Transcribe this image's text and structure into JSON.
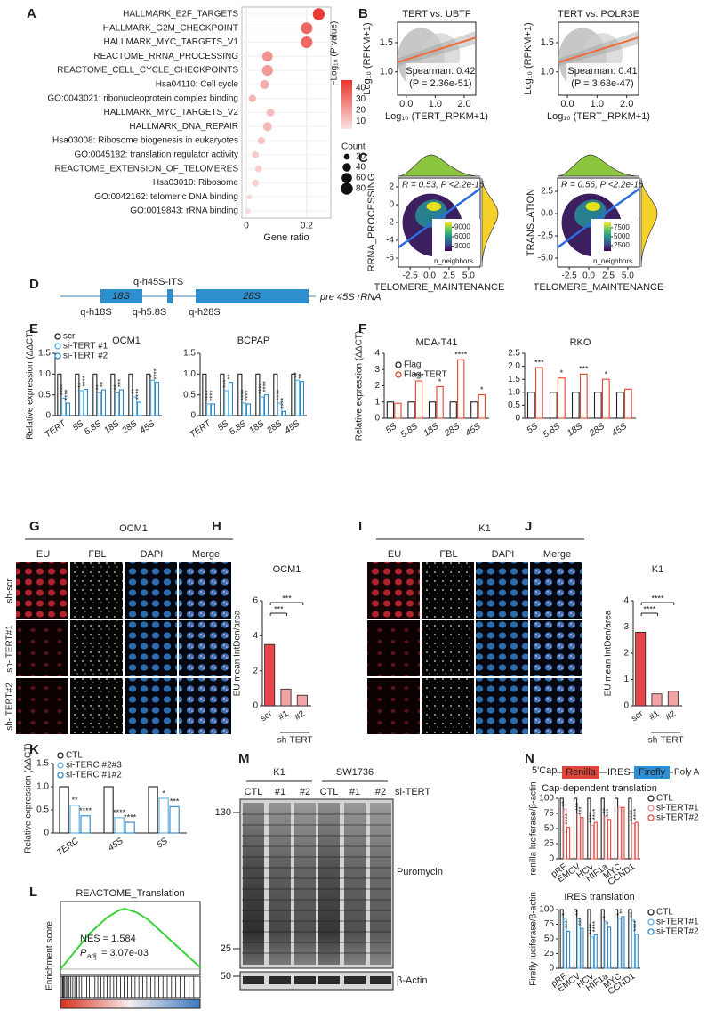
{
  "panel_letters": [
    "A",
    "B",
    "C",
    "D",
    "E",
    "F",
    "G",
    "H",
    "I",
    "J",
    "K",
    "L",
    "M",
    "N"
  ],
  "diagram_d": {
    "probe_top": "q-h45S-ITS",
    "box1": "18S",
    "box2": "28S",
    "label": "pre 45S rRNA",
    "probes": [
      "q-h18S",
      "q-h5.8S",
      "q-h28S"
    ]
  },
  "microscopy_g": {
    "title": "OCM1",
    "channels": [
      "EU",
      "FBL",
      "DAPI",
      "Merge"
    ],
    "rows": [
      "sh-scr",
      "sh- TERT#1",
      "sh- TERT#2"
    ]
  },
  "microscopy_i": {
    "title": "K1",
    "channels": [
      "EU",
      "FBL",
      "DAPI",
      "Merge"
    ]
  },
  "blot_m": {
    "groups": [
      "K1",
      "SW1736"
    ],
    "lanes": [
      "CTL",
      "#1",
      "#2",
      "CTL",
      "#1",
      "#2"
    ],
    "condition": "si-TERT",
    "markers": [
      "130",
      "25",
      "50"
    ],
    "bands": [
      "Puromycin",
      "β-Actin"
    ]
  },
  "construct_n": {
    "cap": "5'Cap",
    "renilla": "Renilla",
    "ires": "IRES",
    "firefly": "Firefly",
    "polya": "Poly A"
  },
  "chart_data": [
    {
      "type": "dot",
      "categories": [
        "HALLMARK_E2F_TARGETS",
        "HALLMARK_G2M_CHECKPOINT",
        "HALLMARK_MYC_TARGETS_V1",
        "REACTOME_RRNA_PROCESSING",
        "REACTOME_CELL_CYCLE_CHECKPOINTS",
        "Hsa04110: Cell cycle",
        "GO:0043021: ribonucleoprotein complex binding",
        "HALLMARK_MYC_TARGETS_V2",
        "HALLMARK_DNA_REPAIR",
        "Hsa03008: Ribosome biogenesis in eukaryotes",
        "GO:0045182: translation regulator activity",
        "REACTOME_EXTENSION_OF_TELOMERES",
        "Hsa03010: Ribosome",
        "GO:0042162: telomeric DNA binding",
        "GO:0019843: rRNA binding"
      ],
      "values": [
        0.24,
        0.2,
        0.2,
        0.07,
        0.07,
        0.06,
        0.02,
        0.08,
        0.07,
        0.05,
        0.03,
        0.04,
        0.03,
        0.01,
        0.005
      ],
      "color_values": [
        45,
        33,
        33,
        22,
        20,
        14,
        12,
        10,
        11,
        8,
        7,
        6,
        5,
        3,
        3
      ],
      "sizes": [
        80,
        75,
        75,
        60,
        65,
        45,
        30,
        35,
        45,
        30,
        25,
        25,
        25,
        15,
        15
      ],
      "x_label": "Gene ratio",
      "xlim": [
        -0.015,
        0.28
      ],
      "xticks": [
        0,
        0.2
      ],
      "colorbar_title": "−Log₁₀ (P value)",
      "clim": [
        3,
        47
      ],
      "colorbar_ticks": [
        10,
        20,
        30,
        40
      ],
      "size_title": "Count",
      "size_ticks": [
        20,
        40,
        60,
        80
      ]
    },
    {
      "type": "scatter",
      "title": "TERT vs. UBTF",
      "x_label": "Log₁₀ (TERT_RPKM+1)",
      "y_label": "Log₁₀ (RPKM+1)",
      "annotations": [
        "Spearman: 0.42",
        "(P = 2.36e-51)"
      ],
      "xlim": [
        -0.3,
        2.4
      ],
      "xticks": [
        {
          "value": 0,
          "label": "0.0"
        },
        {
          "value": 1,
          "label": "1.0"
        },
        {
          "value": 2,
          "label": "2.0"
        }
      ],
      "ylim": [
        0.6,
        1.85
      ],
      "yticks": [
        {
          "value": 1,
          "label": "1.0"
        },
        1.5
      ]
    },
    {
      "type": "scatter",
      "title": "TERT vs. POLR3E",
      "x_label": "Log₁₀ (TERT_RPKM+1)",
      "y_label": "Log₁₀ (RPKM+1)",
      "annotations": [
        "Spearman: 0.41",
        "(P = 3.63e-47)"
      ],
      "xlim": [
        -0.3,
        2.4
      ],
      "xticks": [
        {
          "value": 0,
          "label": "0.0"
        },
        {
          "value": 1,
          "label": "1.0"
        },
        {
          "value": 2,
          "label": "2.0"
        }
      ],
      "ylim": [
        0.6,
        1.85
      ],
      "yticks": [
        {
          "value": 1,
          "label": "1.0"
        },
        1.5
      ]
    },
    {
      "type": "density",
      "annotation": "R = 0.53, P <2.2e-16",
      "x_label": "TELOMERE_MAINTENANCE",
      "y_label": "RRNA_PROCESSING",
      "xlim": [
        -4,
        6.5
      ],
      "xticks": [
        -2.5,
        {
          "value": 0,
          "label": "0.0"
        },
        2.5,
        {
          "value": 5,
          "label": "5.0"
        }
      ],
      "ylim": [
        -7,
        3
      ],
      "yticks": [
        -6,
        -4,
        -2,
        0,
        2
      ],
      "colorbar_title": "n_neighbors",
      "clim": [
        1500,
        10500
      ],
      "colorbar_ticks": [
        3000,
        6000,
        9000
      ]
    },
    {
      "type": "density",
      "annotation": "R = 0.56, P <2.2e-16",
      "x_label": "TELOMERE_MAINTENANCE",
      "y_label": "TRANSLATION",
      "xlim": [
        -4,
        6.5
      ],
      "xticks": [
        -2.5,
        {
          "value": 0,
          "label": "0.0"
        },
        2.5,
        {
          "value": 5,
          "label": "5.0"
        }
      ],
      "ylim": [
        -6,
        4
      ],
      "yticks": [
        {
          "value": -5,
          "label": "-5.0"
        },
        -2.5,
        {
          "value": 0,
          "label": "0.0"
        },
        2.5
      ],
      "colorbar_title": "n_neighbors",
      "clim": [
        1000,
        9000
      ],
      "colorbar_ticks": [
        2500,
        5000,
        7500
      ]
    },
    {
      "type": "bar",
      "style": "outline",
      "title": "OCM1",
      "y_label": "Relative expression (ΔΔCT)",
      "categories": [
        "TERT",
        "5S",
        "5.8S",
        "18S",
        "28S",
        "45S"
      ],
      "series": [
        {
          "name": "scr",
          "color": "#222222",
          "values": [
            1,
            1,
            1,
            1,
            1,
            1
          ]
        },
        {
          "name": "si-TERT #1",
          "color": "#5aaee0",
          "values": [
            0.42,
            0.6,
            0.55,
            0.55,
            0.45,
            0.85
          ],
          "stars": [
            "****",
            "**",
            "**",
            "**",
            "**",
            "*"
          ]
        },
        {
          "name": "si-TERT #2",
          "color": "#2f86c6",
          "values": [
            0.3,
            0.63,
            0.62,
            0.62,
            0.32,
            0.8
          ],
          "stars": [
            "****",
            "****",
            "**",
            "***",
            "****",
            "****"
          ]
        }
      ],
      "ylim": [
        0,
        1.5
      ],
      "yticks": [
        0,
        0.5,
        {
          "value": 1,
          "label": "1.0"
        },
        1.5
      ]
    },
    {
      "type": "bar",
      "style": "outline",
      "title": "BCPAP",
      "categories": [
        "TERT",
        "5S",
        "5.8S",
        "18S",
        "28S",
        "45S"
      ],
      "series": [
        {
          "color": "#222222",
          "values": [
            1,
            1,
            1,
            1,
            1,
            1
          ]
        },
        {
          "color": "#5aaee0",
          "values": [
            0.28,
            0.6,
            0.3,
            0.45,
            0.3,
            0.85
          ],
          "stars": [
            "****",
            "***",
            "****",
            "****",
            "****",
            "**"
          ]
        },
        {
          "color": "#2f86c6",
          "values": [
            0.28,
            0.8,
            0.28,
            0.5,
            0.1,
            0.82
          ],
          "stars": [
            "****",
            "**",
            "****",
            "****",
            "****",
            "**"
          ]
        }
      ],
      "ylim": [
        0,
        1.5
      ],
      "yticks": [
        0,
        0.5,
        {
          "value": 1,
          "label": "1.0"
        },
        1.5
      ]
    },
    {
      "type": "bar",
      "style": "outline",
      "title": "MDA-T41",
      "y_label": "Relative expression (ΔΔCT)",
      "categories": [
        "5S",
        "5.8S",
        "18S",
        "28S",
        "45S"
      ],
      "series": [
        {
          "name": "Flag",
          "color": "#222222",
          "values": [
            1,
            1,
            1,
            1,
            1
          ]
        },
        {
          "name": "Flag-TERT",
          "color": "#e8452c",
          "values": [
            0.92,
            2.3,
            1.95,
            3.6,
            1.45
          ],
          "stars": [
            null,
            "***",
            "*",
            "****",
            "*"
          ]
        }
      ],
      "ylim": [
        0,
        4
      ],
      "yticks": [
        0,
        1,
        2,
        3,
        4
      ]
    },
    {
      "type": "bar",
      "style": "outline",
      "title": "RKO",
      "categories": [
        "5S",
        "5.8S",
        "18S",
        "28S",
        "45S"
      ],
      "series": [
        {
          "color": "#222222",
          "values": [
            1,
            1,
            1,
            1,
            1
          ]
        },
        {
          "color": "#e8452c",
          "values": [
            1.95,
            1.55,
            1.7,
            1.5,
            1.12
          ],
          "stars": [
            "***",
            "*",
            "***",
            "*",
            null
          ]
        }
      ],
      "ylim": [
        0,
        2.5
      ],
      "yticks": [
        0,
        0.5,
        {
          "value": 1,
          "label": "1.0"
        },
        1.5,
        {
          "value": 2,
          "label": "2.0"
        },
        2.5
      ]
    },
    {
      "type": "bar",
      "style": "filled",
      "title": "OCM1",
      "y_label": "EU mean IntDen/area",
      "categories": [
        "scr",
        "#1",
        "#2"
      ],
      "colors": [
        "#e8454a",
        "#f2a3a3",
        "#f2a3a3"
      ],
      "series": [
        {
          "values": [
            3.5,
            0.95,
            0.6
          ]
        }
      ],
      "ylim": [
        0,
        6
      ],
      "yticks": [
        0,
        2,
        4,
        6
      ],
      "brackets": [
        "***",
        "***"
      ],
      "group_label": "sh-TERT"
    },
    {
      "type": "bar",
      "style": "filled",
      "title": "K1",
      "y_label": "EU mean IntDen/area",
      "categories": [
        "scr",
        "#1",
        "#2"
      ],
      "colors": [
        "#e8454a",
        "#f2a3a3",
        "#f2a3a3"
      ],
      "series": [
        {
          "values": [
            2.8,
            0.45,
            0.55
          ]
        }
      ],
      "ylim": [
        0,
        4
      ],
      "yticks": [
        0,
        1,
        2,
        3,
        4
      ],
      "brackets": [
        "****",
        "****"
      ],
      "group_label": "sh-TERT"
    },
    {
      "type": "bar",
      "style": "outline",
      "y_label": "Relative expression (ΔΔCT)",
      "categories": [
        "TERC",
        "45S",
        "5S"
      ],
      "series": [
        {
          "name": "CTL",
          "color": "#222222",
          "values": [
            1,
            1,
            1
          ]
        },
        {
          "name": "si-TERC #2#3",
          "color": "#5aaee0",
          "values": [
            0.6,
            0.33,
            0.75
          ],
          "stars": [
            "**",
            "****",
            "*"
          ]
        },
        {
          "name": "si-TERC #1#2",
          "color": "#2f86c6",
          "values": [
            0.37,
            0.23,
            0.57
          ],
          "stars": [
            "****",
            "****",
            "***"
          ]
        }
      ],
      "ylim": [
        0,
        1.5
      ],
      "yticks": [
        0,
        0.5,
        {
          "value": 1,
          "label": "1.0"
        },
        1.5
      ]
    },
    {
      "type": "line",
      "title": "REACTOME_Translation",
      "y_label": "Enrichment score",
      "color": "#3ad33a",
      "values": [
        0,
        0.04,
        0.08,
        0.12,
        0.16,
        0.2,
        0.23,
        0.26,
        0.29,
        0.31,
        0.33,
        0.34,
        0.33,
        0.32,
        0.3,
        0.28,
        0.25,
        0.22,
        0.19,
        0.16,
        0.13,
        0.1,
        0.07,
        0.04,
        0.01
      ],
      "ylim": [
        -0.03,
        0.38
      ],
      "nes": "NES = 1.584",
      "padj_label": "P",
      "padj_sub": "adj",
      "padj_value": "= 3.07e-03"
    },
    {
      "type": "bar",
      "style": "outline",
      "title": "Cap-dependent translation",
      "y_label": "renilla luciferase/β-actin",
      "categories": [
        "pRF",
        "EMCV",
        "HCV",
        "HIF1a",
        "MYC",
        "CCND1"
      ],
      "series": [
        {
          "name": "CTL",
          "color": "#222222",
          "values": [
            100,
            100,
            100,
            100,
            100,
            100
          ]
        },
        {
          "name": "si-TERT#1",
          "color": "#f08a8a",
          "values": [
            82,
            75,
            55,
            70,
            85,
            58
          ],
          "stars": [
            "**",
            "***",
            "****",
            "**",
            null,
            "****"
          ]
        },
        {
          "name": "si-TERT#2",
          "color": "#e8453c",
          "values": [
            52,
            68,
            60,
            65,
            85,
            60
          ],
          "stars": [
            "****",
            "***",
            "****",
            "***",
            null,
            "****"
          ]
        }
      ],
      "ylim": [
        0,
        100
      ],
      "yticks": [
        0,
        25,
        50,
        75,
        100
      ]
    },
    {
      "type": "bar",
      "style": "outline",
      "title": "IRES translation",
      "y_label": "Firefly luciferase/β-actin",
      "categories": [
        "pRF",
        "EMCV",
        "HCV",
        "HIF1a",
        "MYC",
        "CCND1"
      ],
      "series": [
        {
          "name": "CTL",
          "color": "#222222",
          "values": [
            100,
            100,
            100,
            100,
            100,
            100
          ]
        },
        {
          "name": "si-TERT#1",
          "color": "#5aaee0",
          "values": [
            85,
            85,
            53,
            80,
            85,
            82
          ],
          "stars": [
            "*",
            "**",
            "****",
            "*",
            "*",
            "**"
          ]
        },
        {
          "name": "si-TERT#2",
          "color": "#2f86c6",
          "values": [
            63,
            68,
            57,
            70,
            88,
            58
          ],
          "stars": [
            "***",
            "***",
            "****",
            "*",
            "**",
            "****"
          ]
        }
      ],
      "ylim": [
        0,
        100
      ],
      "yticks": [
        0,
        25,
        50,
        75,
        100
      ]
    }
  ]
}
